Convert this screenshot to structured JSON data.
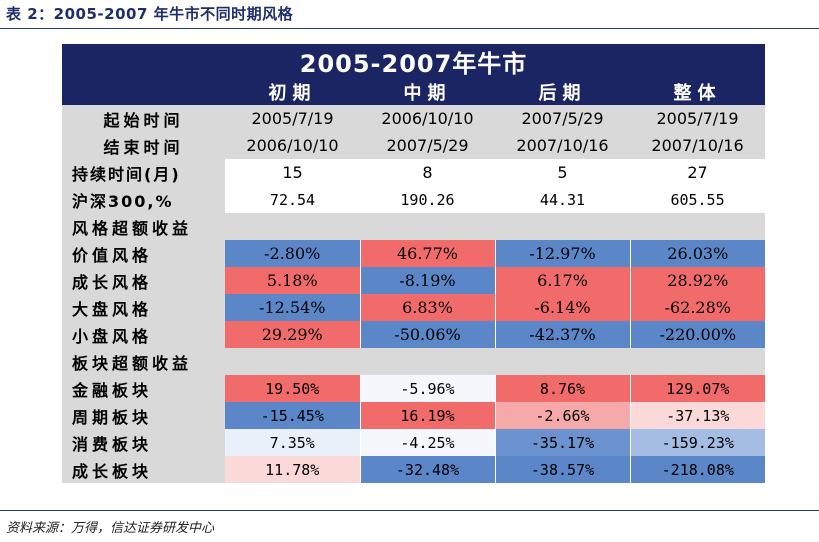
{
  "caption": "表 2：2005-2007 年牛市不同时期风格",
  "source": "资料来源：万得，信达证券研发中心",
  "table": {
    "title": "2005-2007年牛市",
    "columns": [
      "初期",
      "中期",
      "后期",
      "整体"
    ],
    "start_label": "起始时间",
    "start": [
      "2005/7/19",
      "2006/10/10",
      "2007/5/29",
      "2005/7/19"
    ],
    "end_label": "结束时间",
    "end": [
      "2006/10/10",
      "2007/5/29",
      "2007/10/16",
      "2007/10/16"
    ],
    "duration_label": "持续时间(月)",
    "duration": [
      "15",
      "8",
      "5",
      "27"
    ],
    "index_label": "沪深300,%",
    "index": [
      "72.54",
      "190.26",
      "44.31",
      "605.55"
    ],
    "style_section": "风格超额收益",
    "style_rows": [
      {
        "label": "价值风格",
        "values": [
          "-2.80%",
          "46.77%",
          "-12.97%",
          "26.03%"
        ],
        "colors": [
          "#5b86c8",
          "#f26b6b",
          "#5b86c8",
          "#5b86c8"
        ]
      },
      {
        "label": "成长风格",
        "values": [
          "5.18%",
          "-8.19%",
          "6.17%",
          "28.92%"
        ],
        "colors": [
          "#f26b6b",
          "#5b86c8",
          "#f26b6b",
          "#f26b6b"
        ]
      },
      {
        "label": "大盘风格",
        "values": [
          "-12.54%",
          "6.83%",
          "-6.14%",
          "-62.28%"
        ],
        "colors": [
          "#5b86c8",
          "#f26b6b",
          "#f26b6b",
          "#f26b6b"
        ]
      },
      {
        "label": "小盘风格",
        "values": [
          "29.29%",
          "-50.06%",
          "-42.37%",
          "-220.00%"
        ],
        "colors": [
          "#f26b6b",
          "#5b86c8",
          "#5b86c8",
          "#5b86c8"
        ]
      }
    ],
    "sector_section": "板块超额收益",
    "sector_rows": [
      {
        "label": "金融板块",
        "values": [
          "19.50%",
          "-5.96%",
          "8.76%",
          "129.07%"
        ],
        "colors": [
          "#f26b6b",
          "#f5f7fc",
          "#f26b6b",
          "#f26b6b"
        ]
      },
      {
        "label": "周期板块",
        "values": [
          "-15.45%",
          "16.19%",
          "-2.66%",
          "-37.13%"
        ],
        "colors": [
          "#5b86c8",
          "#f26b6b",
          "#f6a9a9",
          "#fbd9d9"
        ]
      },
      {
        "label": "消费板块",
        "values": [
          "7.35%",
          "-4.25%",
          "-35.17%",
          "-159.23%"
        ],
        "colors": [
          "#eaf0f9",
          "#f5f7fc",
          "#6c93cf",
          "#a5bde3"
        ]
      },
      {
        "label": "成长板块",
        "values": [
          "11.78%",
          "-32.48%",
          "-38.57%",
          "-218.08%"
        ],
        "colors": [
          "#fbd9d9",
          "#5b86c8",
          "#5b86c8",
          "#5b86c8"
        ]
      }
    ]
  }
}
